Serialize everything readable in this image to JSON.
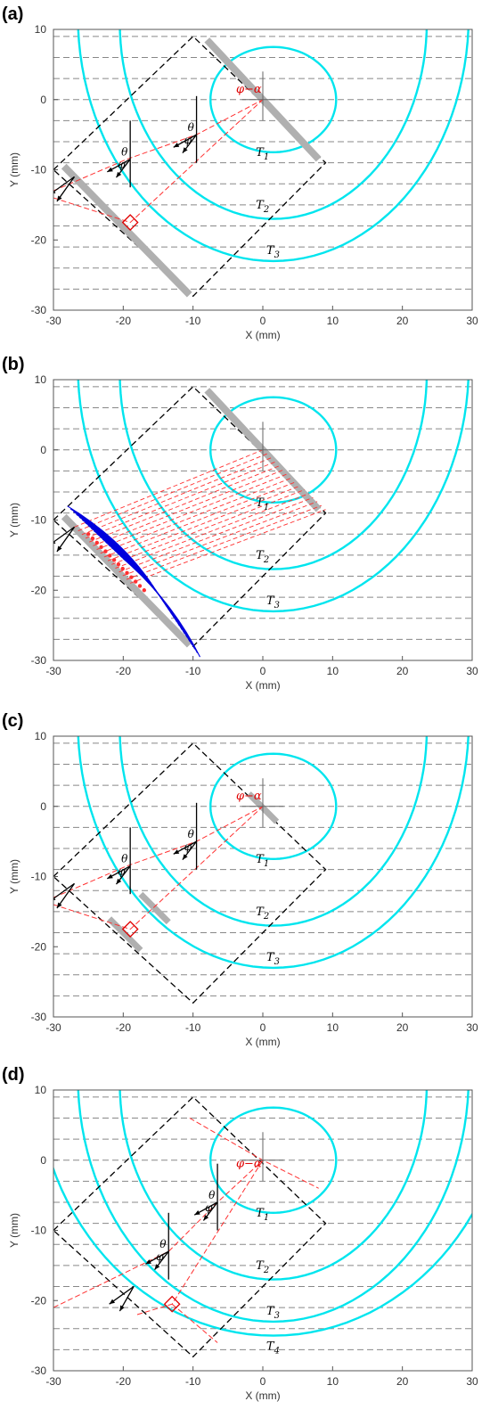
{
  "panels": [
    {
      "letter": "(a)",
      "layers": 3
    },
    {
      "letter": "(b)",
      "layers": 3
    },
    {
      "letter": "(c)",
      "layers": 3
    },
    {
      "letter": "(d)",
      "layers": 4
    }
  ],
  "axes": {
    "x_label": "X (mm)",
    "y_label": "Y (mm)",
    "x_ticks": [
      "-30",
      "-20",
      "-10",
      "0",
      "10",
      "20",
      "30"
    ],
    "y_ticks": [
      "10",
      "0",
      "-10",
      "-20",
      "-30"
    ],
    "xlim": [
      -30,
      30
    ],
    "ylim": [
      -30,
      10
    ]
  },
  "labels": {
    "T1": "T",
    "T1_sub": "1",
    "T2": "T",
    "T2_sub": "2",
    "T3": "T",
    "T3_sub": "3",
    "T4": "T",
    "T4_sub": "4",
    "theta": "θ",
    "phi": "φ",
    "phase_diff": "φ−α"
  },
  "colors": {
    "contour": "#00e5ee",
    "layer_boundary": "#888888",
    "ray": "#ff3030",
    "aperture": "#b0b0b0",
    "wavefront": "#0000dd",
    "normal": "#000000"
  }
}
